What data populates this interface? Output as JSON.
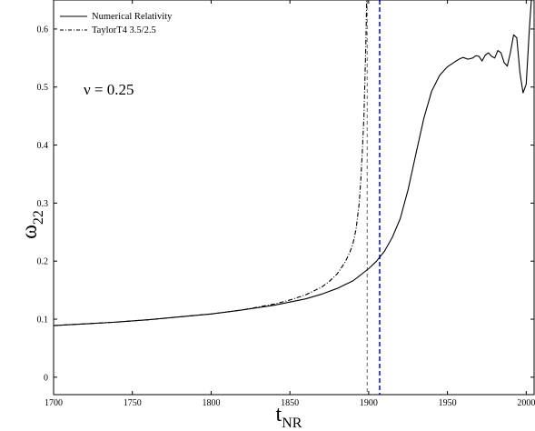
{
  "chart_data": {
    "type": "line",
    "xlabel": "t",
    "xlabel_sub": "NR",
    "ylabel": "ω",
    "ylabel_sub": "22",
    "xlim": [
      1700,
      2005
    ],
    "ylim": [
      -0.03,
      0.65
    ],
    "xticks": [
      1700,
      1750,
      1800,
      1850,
      1900,
      1950,
      2000
    ],
    "yticks": [
      0,
      0.1,
      0.2,
      0.3,
      0.4,
      0.5,
      0.6
    ],
    "xtick_labels": [
      "1700",
      "1750",
      "1800",
      "1850",
      "1900",
      "1950",
      "2000"
    ],
    "ytick_labels": [
      "0",
      "0.1",
      "0.2",
      "0.3",
      "0.4",
      "0.5",
      "0.6"
    ],
    "annotation": "ν = 0.25",
    "legend_position": "top-left",
    "series": [
      {
        "name": "Numerical Relativity",
        "style": "solid",
        "color": "#000000",
        "x": [
          1700,
          1720,
          1740,
          1760,
          1780,
          1800,
          1820,
          1840,
          1860,
          1870,
          1880,
          1890,
          1900,
          1905,
          1910,
          1915,
          1920,
          1925,
          1930,
          1935,
          1940,
          1945,
          1950,
          1955,
          1958,
          1960,
          1963,
          1966,
          1968,
          1970,
          1972,
          1974,
          1976,
          1978,
          1980,
          1982,
          1984,
          1986,
          1988,
          1990,
          1992,
          1994,
          1996,
          1998,
          2000,
          2002,
          2004
        ],
        "y": [
          0.089,
          0.092,
          0.095,
          0.099,
          0.104,
          0.109,
          0.116,
          0.124,
          0.135,
          0.143,
          0.153,
          0.166,
          0.187,
          0.2,
          0.217,
          0.241,
          0.273,
          0.323,
          0.385,
          0.446,
          0.493,
          0.52,
          0.535,
          0.544,
          0.549,
          0.551,
          0.548,
          0.55,
          0.554,
          0.553,
          0.545,
          0.555,
          0.559,
          0.553,
          0.55,
          0.563,
          0.559,
          0.542,
          0.536,
          0.56,
          0.59,
          0.585,
          0.525,
          0.49,
          0.505,
          0.6,
          0.68
        ]
      },
      {
        "name": "TaylorT4 3.5/2.5",
        "style": "dashdot",
        "color": "#000000",
        "x": [
          1700,
          1720,
          1740,
          1760,
          1780,
          1800,
          1820,
          1840,
          1850,
          1860,
          1870,
          1875,
          1880,
          1885,
          1888,
          1890,
          1892,
          1894,
          1895,
          1896,
          1897,
          1898,
          1899
        ],
        "y": [
          0.089,
          0.092,
          0.095,
          0.099,
          0.104,
          0.109,
          0.116,
          0.126,
          0.133,
          0.142,
          0.155,
          0.165,
          0.178,
          0.198,
          0.215,
          0.23,
          0.255,
          0.3,
          0.34,
          0.39,
          0.45,
          0.55,
          0.68
        ]
      }
    ],
    "vertical_lines": [
      {
        "x": 1899,
        "style": "dashed",
        "color": "#000000",
        "width": 0.6
      },
      {
        "x": 1907,
        "style": "dashed",
        "color": "#0000ff",
        "width": 1.5
      }
    ]
  }
}
